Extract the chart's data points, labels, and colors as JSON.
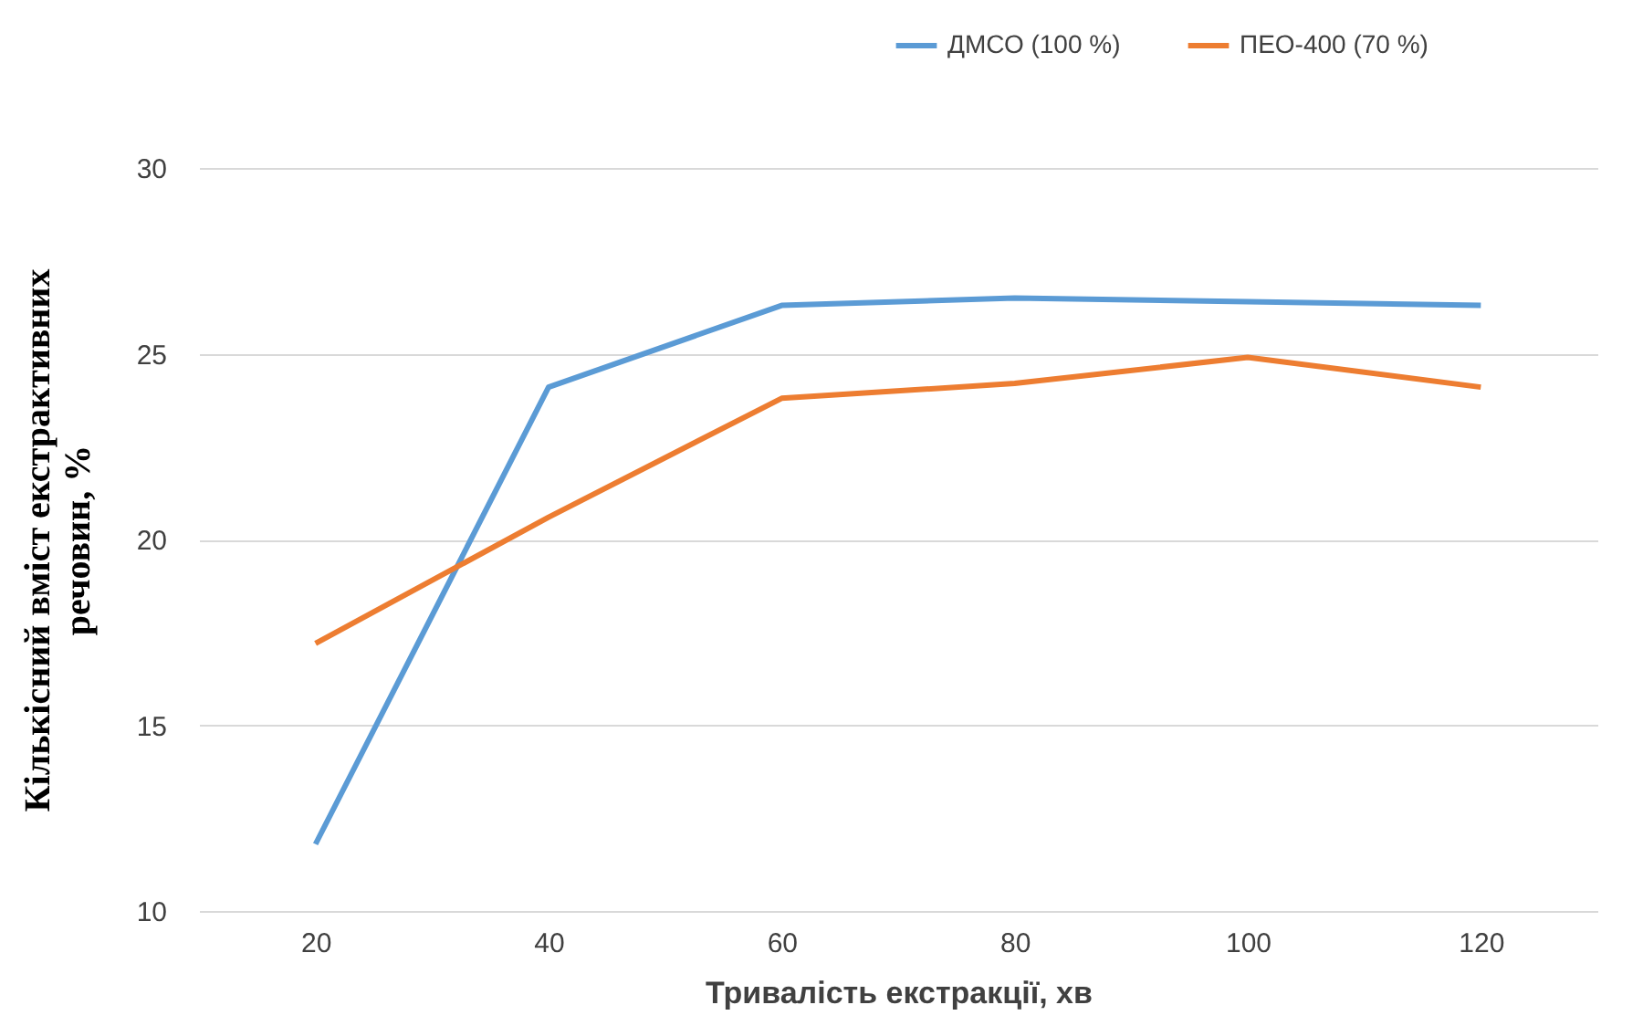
{
  "chart_data": {
    "type": "line",
    "xlabel": "Тривалість екстракції, хв",
    "ylabel": "Кількісний вміст екстрактивних речовин, %",
    "categories": [
      "20",
      "40",
      "60",
      "80",
      "100",
      "120"
    ],
    "series": [
      {
        "name": "ДМСО (100 %)",
        "color": "#5b9bd5",
        "values": [
          11.8,
          24.1,
          26.3,
          26.5,
          26.4,
          26.3
        ]
      },
      {
        "name": "ПЕО-400 (70 %)",
        "color": "#ed7d31",
        "values": [
          17.2,
          20.6,
          23.8,
          24.2,
          24.9,
          24.1
        ]
      }
    ],
    "ylim": [
      10,
      30
    ],
    "yticks": [
      10,
      15,
      20,
      25,
      30
    ],
    "grid": "y",
    "legend": "top right",
    "marker": "none",
    "line_style": "solid"
  }
}
